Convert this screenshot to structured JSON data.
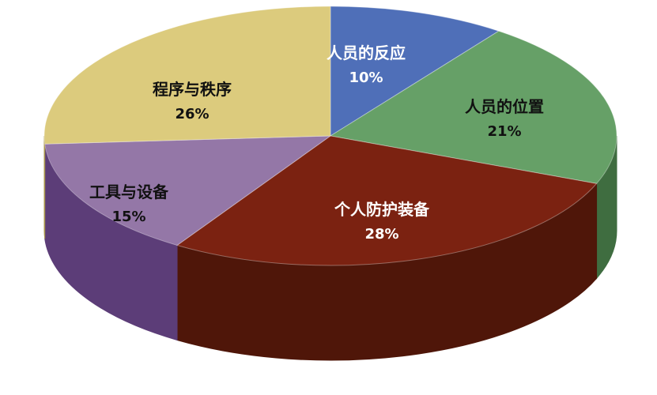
{
  "chart_data": {
    "type": "pie",
    "style": "3d",
    "legend": "none",
    "slices": [
      {
        "label": "人员的反应",
        "value": 10,
        "display": "10%",
        "color": "#4f6fb8",
        "side_color": "#2f4780",
        "text_color": "#ffffff"
      },
      {
        "label": "人员的位置",
        "value": 21,
        "display": "21%",
        "color": "#66a067",
        "side_color": "#3f6d40",
        "text_color": "#111111"
      },
      {
        "label": "个人防护装备",
        "value": 28,
        "display": "28%",
        "color": "#7b2211",
        "side_color": "#4f1609",
        "text_color": "#ffffff"
      },
      {
        "label": "工具与设备",
        "value": 15,
        "display": "15%",
        "color": "#9477a7",
        "side_color": "#5c3d78",
        "text_color": "#111111"
      },
      {
        "label": "程序与秩序",
        "value": 26,
        "display": "26%",
        "color": "#dccb7d",
        "side_color": "#a8964c",
        "text_color": "#111111"
      }
    ]
  }
}
